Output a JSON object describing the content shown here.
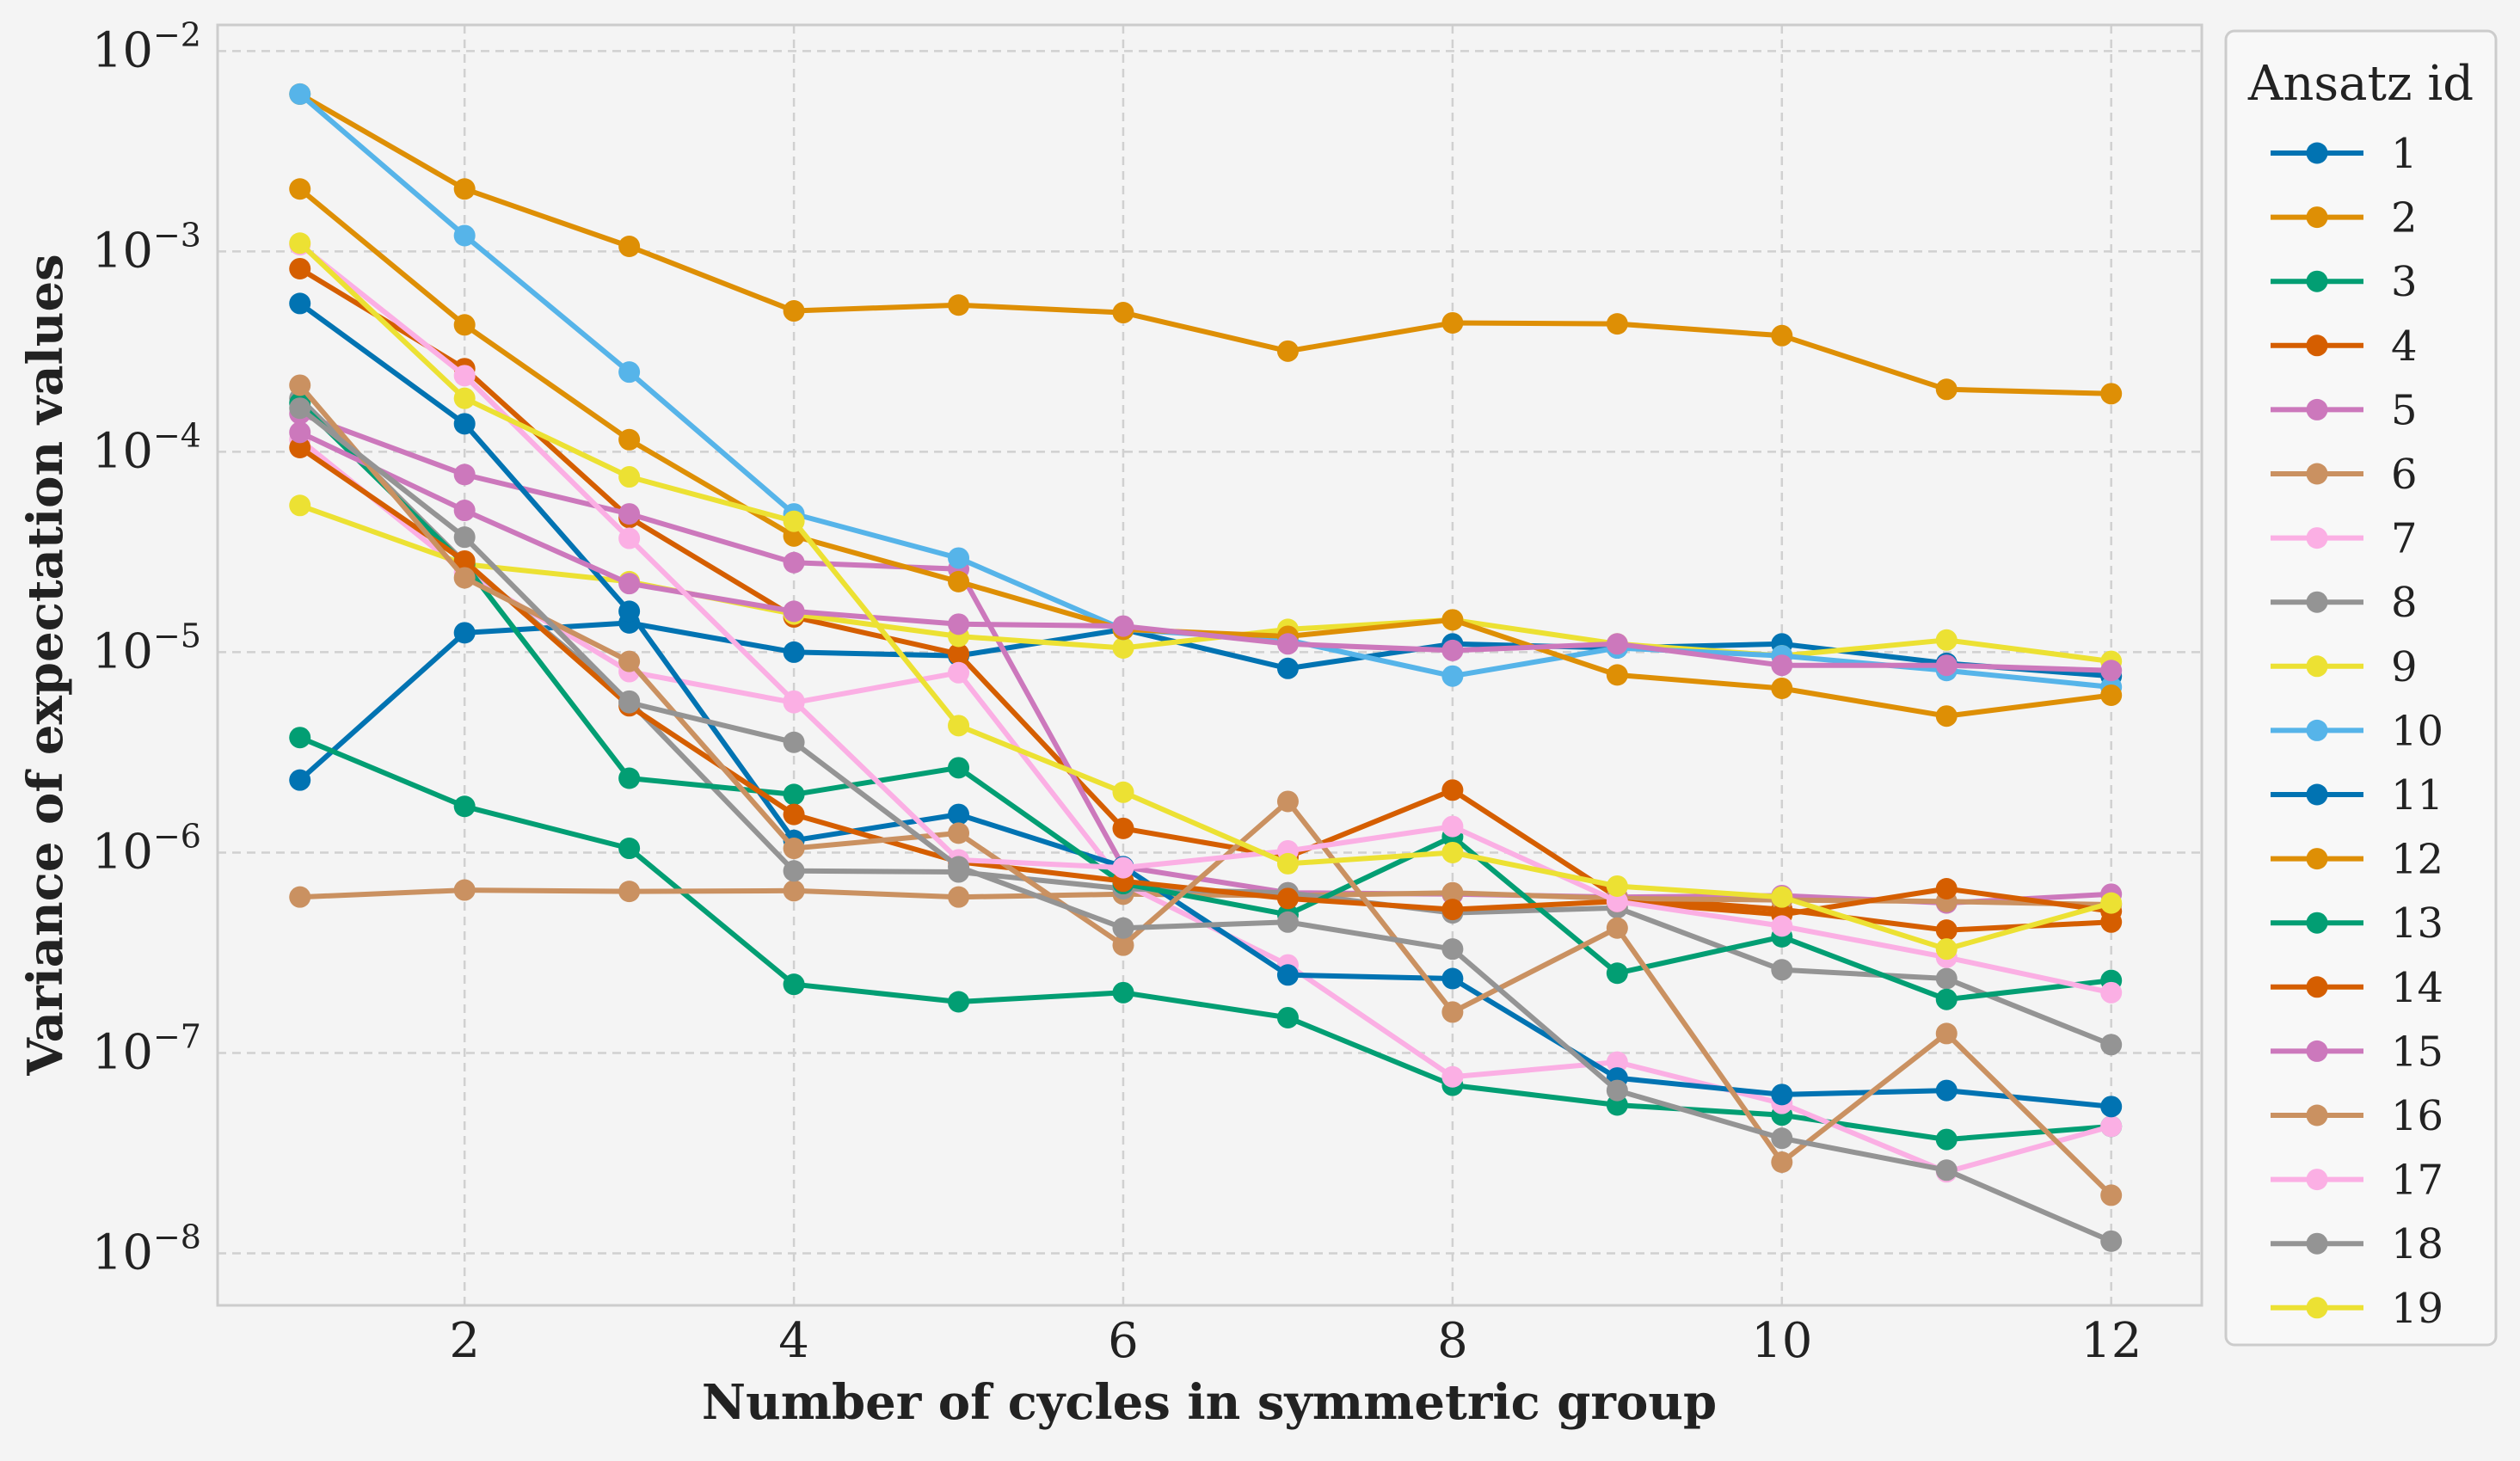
{
  "chart_data": {
    "type": "line",
    "xlabel": "Number of cycles in symmetric group",
    "ylabel": "Variance of expectation values",
    "yscale": "log",
    "xlim": [
      0.5,
      12.55
    ],
    "ylim": [
      5.5e-09,
      0.0135
    ],
    "x": [
      1,
      2,
      3,
      4,
      5,
      6,
      7,
      8,
      9,
      10,
      11,
      12
    ],
    "x_ticks": [
      "2",
      "4",
      "6",
      "8",
      "10",
      "12"
    ],
    "y_ticks": [
      {
        "base": "10",
        "exp": "−8"
      },
      {
        "base": "10",
        "exp": "−7"
      },
      {
        "base": "10",
        "exp": "−6"
      },
      {
        "base": "10",
        "exp": "−5"
      },
      {
        "base": "10",
        "exp": "−4"
      },
      {
        "base": "10",
        "exp": "−3"
      },
      {
        "base": "10",
        "exp": "−2"
      }
    ],
    "grid": true,
    "legend": {
      "title": "Ansatz id",
      "placement": "outside-right"
    },
    "series": [
      {
        "name": "1",
        "color": "#0173b2",
        "values": [
          2.3e-06,
          1.25e-05,
          1.4e-05,
          1e-05,
          9.6e-06,
          1.3e-05,
          8.3e-06,
          1.1e-05,
          1.05e-05,
          1.1e-05,
          8.8e-06,
          7.6e-06
        ]
      },
      {
        "name": "2",
        "color": "#de8f05",
        "values": [
          0.0061,
          0.00205,
          0.00106,
          0.000505,
          0.00054,
          0.000495,
          0.000318,
          0.00044,
          0.000435,
          0.00038,
          0.000205,
          0.000195
        ]
      },
      {
        "name": "3",
        "color": "#029e73",
        "values": [
          3.75e-06,
          1.7e-06,
          1.05e-06,
          2.2e-07,
          1.8e-07,
          2e-07,
          1.5e-07,
          6.9e-08,
          5.5e-08,
          4.9e-08,
          3.7e-08,
          4.3e-08
        ]
      },
      {
        "name": "4",
        "color": "#d55e00",
        "values": [
          0.00082,
          0.00026,
          4.7e-05,
          1.5e-05,
          9.8e-06,
          1.32e-06,
          9.5e-07,
          2.05e-06,
          6e-07,
          5.2e-07,
          4.1e-07,
          4.5e-07
        ]
      },
      {
        "name": "5",
        "color": "#cc78bc",
        "values": [
          0.000155,
          7.7e-05,
          4.9e-05,
          2.8e-05,
          2.6e-05,
          8.5e-07,
          6.3e-07,
          6.2e-07,
          6e-07,
          6.1e-07,
          5.6e-07,
          6.2e-07
        ]
      },
      {
        "name": "6",
        "color": "#ca9161",
        "values": [
          6e-07,
          6.5e-07,
          6.4e-07,
          6.45e-07,
          6e-07,
          6.2e-07,
          6.1e-07,
          6.3e-07,
          5.9e-07,
          5.8e-07,
          5.7e-07,
          5.5e-07
        ]
      },
      {
        "name": "7",
        "color": "#fbafe4",
        "values": [
          0.000115,
          2.5e-05,
          8e-06,
          5.6e-06,
          7.9e-06,
          7e-07,
          2.75e-07,
          7.6e-08,
          9e-08,
          5.6e-08,
          2.55e-08,
          4.3e-08
        ]
      },
      {
        "name": "8",
        "color": "#949494",
        "values": [
          0.000185,
          2.8e-05,
          5.7e-06,
          8.1e-07,
          8e-07,
          6.6e-07,
          6.3e-07,
          5e-07,
          5.3e-07,
          2.6e-07,
          2.35e-07,
          1.1e-07
        ]
      },
      {
        "name": "9",
        "color": "#ece133",
        "values": [
          5.4e-05,
          2.75e-05,
          2.25e-05,
          1.55e-05,
          1.2e-05,
          1.05e-05,
          1.3e-05,
          1.45e-05,
          1.1e-05,
          9.6e-06,
          1.15e-05,
          9e-06
        ]
      },
      {
        "name": "10",
        "color": "#56b4e9",
        "values": [
          0.0061,
          0.0012,
          0.00025,
          4.9e-05,
          2.95e-05,
          1.3e-05,
          1.15e-05,
          7.6e-06,
          1.05e-05,
          9.6e-06,
          8.1e-06,
          6.7e-06
        ]
      },
      {
        "name": "11",
        "color": "#0173b2",
        "values": [
          0.00055,
          0.000138,
          1.6e-05,
          1.15e-06,
          1.55e-06,
          8.5e-07,
          2.45e-07,
          2.35e-07,
          7.5e-08,
          6.2e-08,
          6.5e-08,
          5.4e-08
        ]
      },
      {
        "name": "12",
        "color": "#de8f05",
        "values": [
          0.00205,
          0.00043,
          0.000115,
          3.8e-05,
          2.25e-05,
          1.3e-05,
          1.2e-05,
          1.45e-05,
          7.7e-06,
          6.6e-06,
          4.8e-06,
          6.1e-06
        ]
      },
      {
        "name": "13",
        "color": "#029e73",
        "values": [
          0.000175,
          2.75e-05,
          2.35e-06,
          1.95e-06,
          2.65e-06,
          7e-07,
          4.9e-07,
          1.2e-06,
          2.5e-07,
          3.8e-07,
          1.85e-07,
          2.3e-07
        ]
      },
      {
        "name": "14",
        "color": "#d55e00",
        "values": [
          0.000105,
          2.85e-05,
          5.4e-06,
          1.55e-06,
          9e-07,
          7.2e-07,
          5.9e-07,
          5.2e-07,
          5.7e-07,
          4.9e-07,
          6.6e-07,
          5.1e-07
        ]
      },
      {
        "name": "15",
        "color": "#cc78bc",
        "values": [
          0.000125,
          5.1e-05,
          2.2e-05,
          1.6e-05,
          1.38e-05,
          1.35e-05,
          1.1e-05,
          1.02e-05,
          1.1e-05,
          8.6e-06,
          8.6e-06,
          8.1e-06
        ]
      },
      {
        "name": "16",
        "color": "#ca9161",
        "values": [
          0.000215,
          2.35e-05,
          9e-06,
          1.05e-06,
          1.25e-06,
          3.45e-07,
          1.8e-06,
          1.6e-07,
          4.2e-07,
          2.85e-08,
          1.25e-07,
          1.95e-08
        ]
      },
      {
        "name": "17",
        "color": "#fbafe4",
        "values": [
          0.00108,
          0.00024,
          3.7e-05,
          5.7e-06,
          9.2e-07,
          8.4e-07,
          1.02e-06,
          1.35e-06,
          5.7e-07,
          4.3e-07,
          3e-07,
          2e-07
        ]
      },
      {
        "name": "18",
        "color": "#949494",
        "values": [
          0.000165,
          3.75e-05,
          5.6e-06,
          3.55e-06,
          8.5e-07,
          4.2e-07,
          4.5e-07,
          3.3e-07,
          6.5e-08,
          3.75e-08,
          2.6e-08,
          1.15e-08
        ]
      },
      {
        "name": "19",
        "color": "#ece133",
        "values": [
          0.0011,
          0.000185,
          7.5e-05,
          4.5e-05,
          4.3e-06,
          2e-06,
          8.8e-07,
          1e-06,
          6.8e-07,
          6e-07,
          3.3e-07,
          5.6e-07
        ]
      }
    ]
  }
}
